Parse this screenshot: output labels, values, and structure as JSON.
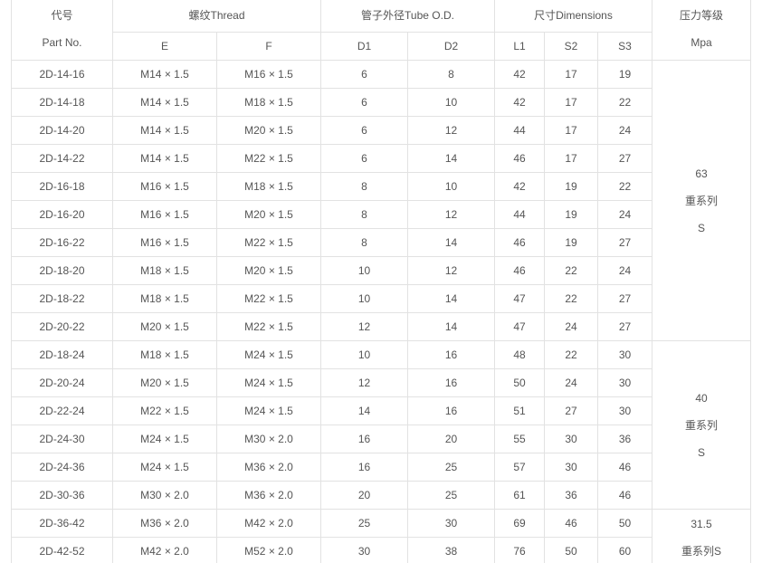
{
  "header": {
    "part_no": [
      "代号",
      "Part No."
    ],
    "thread": {
      "title": "螺纹Thread",
      "columns": [
        "E",
        "F"
      ]
    },
    "tube": {
      "title": "管子外径Tube O.D.",
      "columns": [
        "D1",
        "D2"
      ]
    },
    "dimensions": {
      "title": "尺寸Dimensions",
      "columns": [
        "L1",
        "S2",
        "S3"
      ]
    },
    "pressure": [
      "压力等级",
      "Mpa"
    ]
  },
  "groups": [
    {
      "pressure": [
        "63",
        "重系列",
        "S"
      ],
      "rows": [
        [
          "2D-14-16",
          "M14 × 1.5",
          "M16 × 1.5",
          "6",
          "8",
          "42",
          "17",
          "19"
        ],
        [
          "2D-14-18",
          "M14 × 1.5",
          "M18 × 1.5",
          "6",
          "10",
          "42",
          "17",
          "22"
        ],
        [
          "2D-14-20",
          "M14 × 1.5",
          "M20 × 1.5",
          "6",
          "12",
          "44",
          "17",
          "24"
        ],
        [
          "2D-14-22",
          "M14 × 1.5",
          "M22 × 1.5",
          "6",
          "14",
          "46",
          "17",
          "27"
        ],
        [
          "2D-16-18",
          "M16 × 1.5",
          "M18 × 1.5",
          "8",
          "10",
          "42",
          "19",
          "22"
        ],
        [
          "2D-16-20",
          "M16 × 1.5",
          "M20 × 1.5",
          "8",
          "12",
          "44",
          "19",
          "24"
        ],
        [
          "2D-16-22",
          "M16 × 1.5",
          "M22 × 1.5",
          "8",
          "14",
          "46",
          "19",
          "27"
        ],
        [
          "2D-18-20",
          "M18 × 1.5",
          "M20 × 1.5",
          "10",
          "12",
          "46",
          "22",
          "24"
        ],
        [
          "2D-18-22",
          "M18 × 1.5",
          "M22 × 1.5",
          "10",
          "14",
          "47",
          "22",
          "27"
        ],
        [
          "2D-20-22",
          "M20 × 1.5",
          "M22 × 1.5",
          "12",
          "14",
          "47",
          "24",
          "27"
        ]
      ]
    },
    {
      "pressure": [
        "40",
        "重系列",
        "S"
      ],
      "rows": [
        [
          "2D-18-24",
          "M18 × 1.5",
          "M24 × 1.5",
          "10",
          "16",
          "48",
          "22",
          "30"
        ],
        [
          "2D-20-24",
          "M20 × 1.5",
          "M24 × 1.5",
          "12",
          "16",
          "50",
          "24",
          "30"
        ],
        [
          "2D-22-24",
          "M22 × 1.5",
          "M24 × 1.5",
          "14",
          "16",
          "51",
          "27",
          "30"
        ],
        [
          "2D-24-30",
          "M24 × 1.5",
          "M30 × 2.0",
          "16",
          "20",
          "55",
          "30",
          "36"
        ],
        [
          "2D-24-36",
          "M24 × 1.5",
          "M36 × 2.0",
          "16",
          "25",
          "57",
          "30",
          "46"
        ],
        [
          "2D-30-36",
          "M30 × 2.0",
          "M36 × 2.0",
          "20",
          "25",
          "61",
          "36",
          "46"
        ]
      ]
    },
    {
      "pressure": [
        "31.5",
        "重系列S"
      ],
      "rows": [
        [
          "2D-36-42",
          "M36 × 2.0",
          "M42 × 2.0",
          "25",
          "30",
          "69",
          "46",
          "50"
        ],
        [
          "2D-42-52",
          "M42 × 2.0",
          "M52 × 2.0",
          "30",
          "38",
          "76",
          "50",
          "60"
        ]
      ]
    }
  ]
}
